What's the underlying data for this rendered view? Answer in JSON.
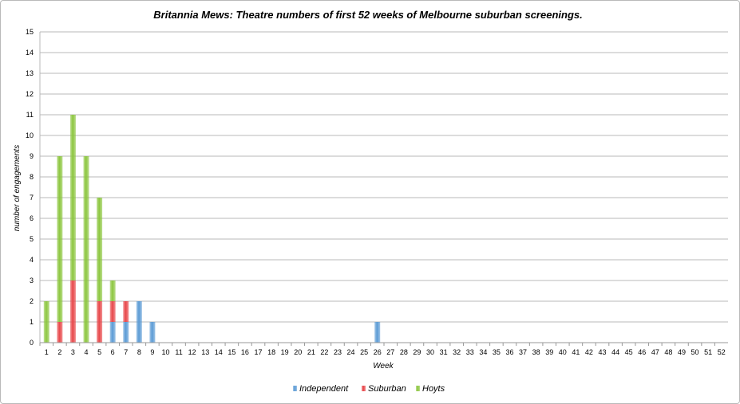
{
  "chart_data": {
    "type": "bar",
    "stacked": true,
    "title": "Britannia Mews: Theatre numbers of first 52 weeks of Melbourne suburban screenings.",
    "xlabel": "Week",
    "ylabel": "number of engagements",
    "ylim": [
      0,
      15
    ],
    "yticks": [
      "0",
      "1",
      "2",
      "3",
      "4",
      "5",
      "6",
      "7",
      "8",
      "9",
      "10",
      "11",
      "12",
      "13",
      "14",
      "15"
    ],
    "grid": true,
    "legend_position": "bottom",
    "categories": [
      "1",
      "2",
      "3",
      "4",
      "5",
      "6",
      "7",
      "8",
      "9",
      "10",
      "11",
      "12",
      "13",
      "14",
      "15",
      "16",
      "17",
      "18",
      "19",
      "20",
      "21",
      "22",
      "23",
      "24",
      "25",
      "26",
      "27",
      "28",
      "29",
      "30",
      "31",
      "32",
      "33",
      "34",
      "35",
      "36",
      "37",
      "38",
      "39",
      "40",
      "41",
      "42",
      "43",
      "44",
      "45",
      "46",
      "47",
      "48",
      "49",
      "50",
      "51",
      "52"
    ],
    "series": [
      {
        "name": "Independent",
        "color": "#5b9bd5",
        "values": [
          0,
          0,
          0,
          0,
          0,
          1,
          1,
          2,
          1,
          0,
          0,
          0,
          0,
          0,
          0,
          0,
          0,
          0,
          0,
          0,
          0,
          0,
          0,
          0,
          0,
          1,
          0,
          0,
          0,
          0,
          0,
          0,
          0,
          0,
          0,
          0,
          0,
          0,
          0,
          0,
          0,
          0,
          0,
          0,
          0,
          0,
          0,
          0,
          0,
          0,
          0,
          0
        ]
      },
      {
        "name": "Suburban",
        "color": "#e8474a",
        "values": [
          0,
          1,
          3,
          0,
          2,
          1,
          1,
          0,
          0,
          0,
          0,
          0,
          0,
          0,
          0,
          0,
          0,
          0,
          0,
          0,
          0,
          0,
          0,
          0,
          0,
          0,
          0,
          0,
          0,
          0,
          0,
          0,
          0,
          0,
          0,
          0,
          0,
          0,
          0,
          0,
          0,
          0,
          0,
          0,
          0,
          0,
          0,
          0,
          0,
          0,
          0,
          0
        ]
      },
      {
        "name": "Hoyts",
        "color": "#8cc63f",
        "values": [
          2,
          8,
          8,
          9,
          5,
          1,
          0,
          0,
          0,
          0,
          0,
          0,
          0,
          0,
          0,
          0,
          0,
          0,
          0,
          0,
          0,
          0,
          0,
          0,
          0,
          0,
          0,
          0,
          0,
          0,
          0,
          0,
          0,
          0,
          0,
          0,
          0,
          0,
          0,
          0,
          0,
          0,
          0,
          0,
          0,
          0,
          0,
          0,
          0,
          0,
          0,
          0
        ]
      }
    ]
  }
}
